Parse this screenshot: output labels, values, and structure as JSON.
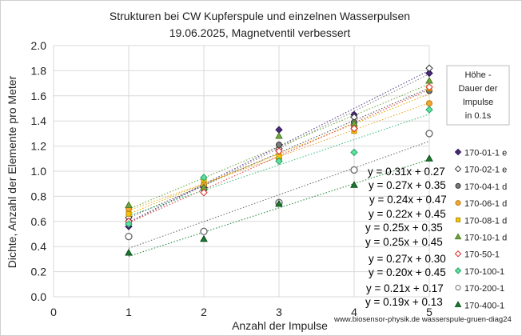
{
  "chart_data": {
    "type": "scatter",
    "title": "Strukturen bei CW Kupferspule und einzelnen Wasserpulsen",
    "subtitle": "19.06.2025, Magnetventil verbessert",
    "xlabel": "Anzahl der Impulse",
    "ylabel": "Dichte, Anzahl der Elemente pro Meter",
    "xlim": [
      0,
      5
    ],
    "ylim": [
      0,
      2
    ],
    "x_ticks": [
      "0",
      "1",
      "2",
      "3",
      "4",
      "5"
    ],
    "y_ticks": [
      "0.0",
      "0.2",
      "0.4",
      "0.6",
      "0.8",
      "1.0",
      "1.2",
      "1.4",
      "1.6",
      "1.8",
      "2.0"
    ],
    "grid": true,
    "legend_position": "right",
    "legend_note": [
      "Höhe -",
      "Dauer der",
      "Impulse",
      "in  0.1s"
    ],
    "credit": "www.biosensor-physik.de  wasserspule-gruen-diag24",
    "series": [
      {
        "name": "170-01-1 e",
        "marker": "diamond",
        "fill": "#4b2a7a",
        "stroke": "#2a1050",
        "trend_color": "#5a3a8a",
        "x": [
          1,
          2,
          3,
          4,
          5
        ],
        "y": [
          0.56,
          0.87,
          1.33,
          1.45,
          1.78
        ]
      },
      {
        "name": "170-02-1 e",
        "marker": "diamond",
        "fill": "#ffffff",
        "stroke": "#333333",
        "trend_color": "#888888",
        "x": [
          1,
          2,
          3,
          4,
          5
        ],
        "y": [
          0.63,
          0.85,
          1.18,
          1.43,
          1.82
        ]
      },
      {
        "name": "170-04-1 d",
        "marker": "circle",
        "fill": "#7a7a7a",
        "stroke": "#333333",
        "trend_color": "#555555",
        "x": [
          1,
          2,
          3,
          4,
          5
        ],
        "y": [
          0.6,
          0.89,
          1.21,
          1.39,
          1.64
        ]
      },
      {
        "name": "170-06-1 d",
        "marker": "circle",
        "fill": "#f0a830",
        "stroke": "#c07810",
        "trend_color": "#f0a830",
        "x": [
          1,
          2,
          3,
          4,
          5
        ],
        "y": [
          0.7,
          0.89,
          1.1,
          1.35,
          1.54
        ]
      },
      {
        "name": "170-08-1 d",
        "marker": "square",
        "fill": "#f5c400",
        "stroke": "#b08a00",
        "trend_color": "#e0b000",
        "x": [
          1,
          2,
          3,
          4,
          5
        ],
        "y": [
          0.66,
          0.93,
          1.12,
          1.32,
          1.66
        ]
      },
      {
        "name": "170-10-1 d",
        "marker": "triangle",
        "fill": "#70a840",
        "stroke": "#4a7a20",
        "trend_color": "#70a840",
        "x": [
          1,
          2,
          3,
          4,
          5
        ],
        "y": [
          0.73,
          0.87,
          1.28,
          1.38,
          1.72
        ]
      },
      {
        "name": "170-50-1",
        "marker": "diamond",
        "fill": "#ffffff",
        "stroke": "#e02020",
        "trend_color": "#e04040",
        "x": [
          1,
          2,
          3,
          4,
          5
        ],
        "y": [
          0.6,
          0.83,
          1.16,
          1.34,
          1.67
        ]
      },
      {
        "name": "170-100-1",
        "marker": "diamond",
        "fill": "#60e0a0",
        "stroke": "#20a060",
        "trend_color": "#40c080",
        "x": [
          1,
          2,
          3,
          4,
          5
        ],
        "y": [
          0.58,
          0.95,
          1.08,
          1.15,
          1.49
        ]
      },
      {
        "name": "170-200-1",
        "marker": "circle",
        "fill": "#ffffff",
        "stroke": "#707070",
        "trend_color": "#707070",
        "x": [
          1,
          2,
          3,
          4,
          5
        ],
        "y": [
          0.48,
          0.52,
          0.75,
          1.01,
          1.3
        ]
      },
      {
        "name": "170-400-1",
        "marker": "triangle",
        "fill": "#1a7a30",
        "stroke": "#0a4a18",
        "trend_color": "#2a8a40",
        "x": [
          1,
          2,
          3,
          4,
          5
        ],
        "y": [
          0.35,
          0.46,
          0.74,
          0.89,
          1.1
        ]
      }
    ],
    "annotations": [
      "y = 0.31x + 0.27",
      "y = 0.27x + 0.35",
      "y = 0.24x + 0.47",
      "y = 0.22x + 0.45",
      "y = 0.25x + 0.35",
      "y = 0.25x + 0.45",
      "y = 0.27x + 0.30",
      "y = 0.20x + 0.45",
      "y = 0.21x + 0.17",
      "y = 0.19x + 0.13"
    ]
  }
}
